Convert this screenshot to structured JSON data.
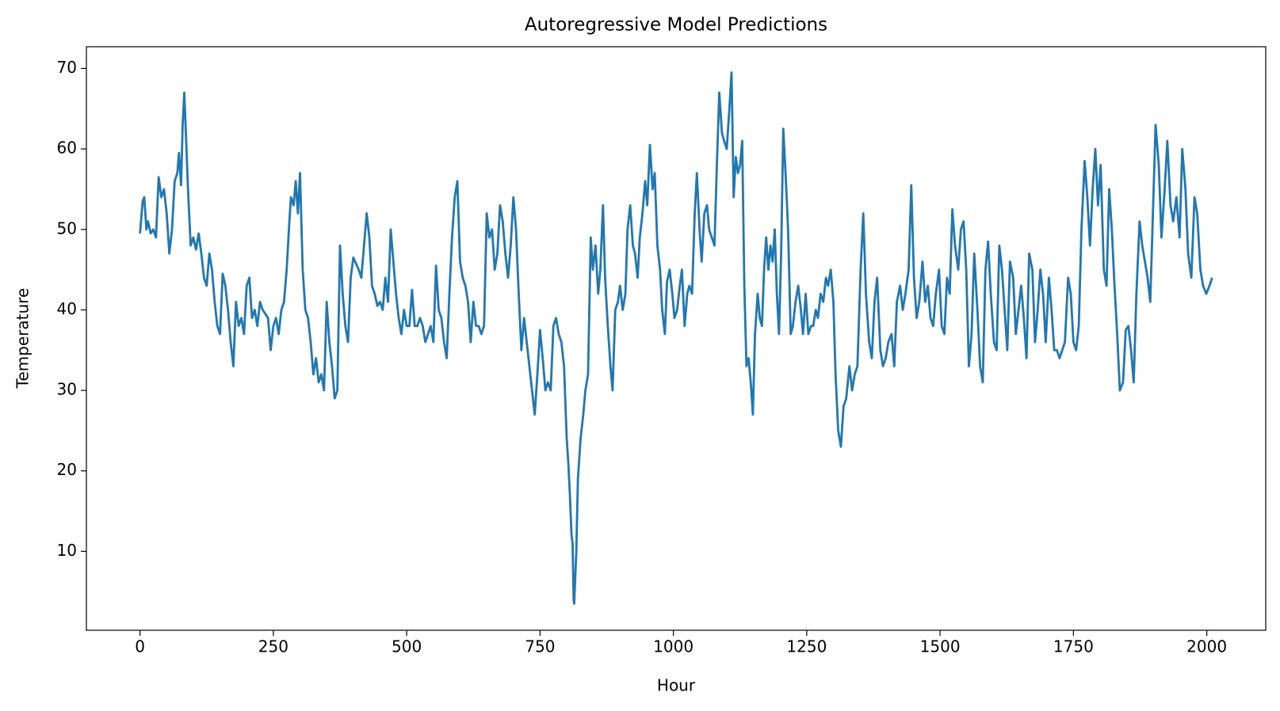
{
  "chart_data": {
    "type": "line",
    "title": "Autoregressive Model Predictions",
    "x_label": "Hour",
    "y_label": "Temperature",
    "color": "#1f77b4",
    "xlim": [
      -100.5,
      2110.5
    ],
    "ylim": [
      0.2,
      72.7
    ],
    "xticks": [
      0,
      250,
      500,
      750,
      1000,
      1250,
      1500,
      1750,
      2000
    ],
    "yticks": [
      10,
      20,
      30,
      40,
      50,
      60,
      70
    ],
    "x": [
      0,
      5,
      8,
      12,
      15,
      20,
      25,
      30,
      35,
      40,
      45,
      50,
      55,
      60,
      65,
      70,
      73,
      77,
      80,
      83,
      86,
      90,
      95,
      100,
      105,
      110,
      115,
      120,
      125,
      130,
      135,
      140,
      145,
      150,
      155,
      160,
      165,
      170,
      175,
      180,
      185,
      190,
      195,
      200,
      205,
      210,
      215,
      220,
      225,
      230,
      240,
      245,
      250,
      255,
      260,
      265,
      270,
      275,
      280,
      283,
      288,
      292,
      296,
      300,
      305,
      310,
      315,
      320,
      325,
      330,
      335,
      340,
      345,
      350,
      355,
      360,
      365,
      370,
      375,
      380,
      385,
      390,
      395,
      400,
      410,
      415,
      420,
      425,
      430,
      435,
      440,
      445,
      450,
      455,
      460,
      465,
      470,
      475,
      480,
      485,
      490,
      495,
      500,
      505,
      510,
      515,
      520,
      525,
      530,
      535,
      540,
      545,
      550,
      555,
      560,
      565,
      570,
      575,
      580,
      585,
      590,
      595,
      600,
      605,
      610,
      615,
      620,
      625,
      630,
      635,
      640,
      645,
      650,
      655,
      660,
      665,
      670,
      675,
      680,
      685,
      690,
      695,
      700,
      705,
      710,
      715,
      720,
      725,
      730,
      735,
      740,
      745,
      750,
      755,
      760,
      765,
      770,
      775,
      780,
      785,
      790,
      795,
      800,
      803,
      806,
      809,
      811,
      813,
      814,
      818,
      821,
      826,
      831,
      835,
      840,
      845,
      849,
      854,
      859,
      863,
      868,
      872,
      877,
      882,
      886,
      891,
      896,
      900,
      905,
      910,
      914,
      919,
      924,
      928,
      933,
      937,
      942,
      947,
      951,
      956,
      961,
      965,
      970,
      975,
      979,
      984,
      988,
      993,
      998,
      1002,
      1007,
      1012,
      1016,
      1021,
      1026,
      1030,
      1035,
      1040,
      1044,
      1049,
      1053,
      1058,
      1063,
      1067,
      1072,
      1077,
      1081,
      1086,
      1091,
      1095,
      1100,
      1105,
      1109,
      1113,
      1117,
      1121,
      1125,
      1129,
      1133,
      1137,
      1141,
      1145,
      1149,
      1153,
      1158,
      1162,
      1166,
      1170,
      1174,
      1178,
      1182,
      1186,
      1190,
      1194,
      1198,
      1202,
      1206,
      1211,
      1215,
      1220,
      1224,
      1229,
      1234,
      1239,
      1243,
      1248,
      1253,
      1258,
      1262,
      1267,
      1271,
      1276,
      1281,
      1286,
      1290,
      1295,
      1300,
      1304,
      1309,
      1314,
      1319,
      1324,
      1330,
      1335,
      1340,
      1345,
      1351,
      1356,
      1361,
      1367,
      1372,
      1377,
      1382,
      1388,
      1393,
      1398,
      1403,
      1409,
      1414,
      1419,
      1425,
      1430,
      1435,
      1441,
      1446,
      1451,
      1456,
      1461,
      1467,
      1472,
      1477,
      1482,
      1487,
      1492,
      1498,
      1503,
      1508,
      1513,
      1518,
      1523,
      1528,
      1534,
      1539,
      1544,
      1549,
      1554,
      1559,
      1564,
      1570,
      1575,
      1580,
      1585,
      1590,
      1595,
      1601,
      1606,
      1611,
      1616,
      1621,
      1626,
      1631,
      1637,
      1642,
      1647,
      1652,
      1657,
      1662,
      1667,
      1673,
      1678,
      1683,
      1688,
      1693,
      1698,
      1704,
      1709,
      1714,
      1719,
      1724,
      1729,
      1734,
      1740,
      1745,
      1750,
      1755,
      1760,
      1765,
      1771,
      1776,
      1781,
      1786,
      1791,
      1796,
      1801,
      1807,
      1812,
      1817,
      1822,
      1827,
      1832,
      1837,
      1843,
      1848,
      1853,
      1858,
      1863,
      1868,
      1874,
      1879,
      1884,
      1889,
      1894,
      1899,
      1904,
      1910,
      1915,
      1921,
      1926,
      1932,
      1937,
      1943,
      1949,
      1954,
      1960,
      1965,
      1971,
      1977,
      1982,
      1988,
      1993,
      1999,
      2005,
      2010
    ],
    "values": [
      49.5,
      53.5,
      54,
      50,
      51,
      49.5,
      50,
      49,
      56.5,
      54,
      55,
      52,
      47,
      50,
      56,
      57,
      59.5,
      55.5,
      63,
      67,
      62,
      55,
      48,
      49,
      47.5,
      49.5,
      47,
      44,
      43,
      47,
      45,
      41,
      38,
      37,
      44.5,
      43,
      40,
      36,
      33,
      41,
      38,
      39,
      37,
      43,
      44,
      39,
      40,
      38,
      41,
      40,
      39,
      35,
      38,
      39,
      37,
      40,
      41,
      45,
      51,
      54,
      53,
      56,
      52,
      57,
      45,
      40,
      39,
      36,
      32,
      34,
      31,
      32,
      30,
      41,
      36,
      33,
      29,
      30,
      48,
      42,
      38,
      36,
      44,
      46.5,
      45,
      44,
      48,
      52,
      49,
      43,
      42,
      40.5,
      41,
      40,
      44,
      41,
      50,
      46,
      42,
      39,
      37,
      40,
      38,
      38,
      42.5,
      38,
      38,
      39,
      38,
      36,
      37,
      38,
      36,
      45.5,
      40,
      39,
      36,
      34,
      42,
      49,
      54,
      56,
      46,
      44,
      43,
      41,
      36,
      41,
      38,
      38,
      37,
      38,
      52,
      49,
      50,
      45,
      47,
      53,
      51,
      47,
      44,
      48,
      54,
      50,
      42,
      35,
      39,
      36,
      33,
      30,
      27,
      32,
      37.5,
      34,
      30,
      31,
      30,
      38,
      39,
      37,
      36,
      33,
      24,
      21,
      17,
      12,
      11,
      4,
      3.5,
      10,
      19,
      24,
      27,
      30,
      32,
      49,
      45,
      48,
      42,
      45,
      53,
      44,
      38,
      33,
      30,
      40,
      41,
      43,
      40,
      42,
      50,
      53,
      48,
      47,
      44,
      49,
      52,
      56,
      53,
      60.5,
      55,
      57,
      48,
      45,
      40,
      37,
      43.5,
      45,
      42,
      39,
      40,
      43,
      45,
      38,
      42,
      43,
      42,
      52,
      57,
      50,
      46,
      52,
      53,
      50,
      49,
      48,
      57,
      67,
      62,
      61,
      60,
      65,
      69.5,
      54,
      59,
      57,
      58,
      61,
      43,
      33,
      34,
      31,
      27,
      37,
      42,
      39,
      38,
      45,
      49,
      45,
      48,
      46,
      50,
      42,
      37,
      47,
      62.5,
      56,
      50,
      37,
      38,
      41,
      43,
      40,
      37,
      42,
      37,
      38,
      38,
      40,
      39,
      42,
      41,
      44,
      43,
      45,
      41,
      32,
      25,
      23,
      28,
      29,
      33,
      30,
      32,
      33,
      45,
      52,
      42,
      36,
      34,
      41,
      44,
      35,
      33,
      34,
      36,
      37,
      33,
      41,
      43,
      40,
      42,
      45,
      55.5,
      44,
      39,
      41,
      46,
      41,
      43,
      39,
      38,
      42,
      45,
      38,
      37,
      44,
      42,
      52.5,
      48,
      45,
      50,
      51,
      45,
      33,
      37,
      47,
      40,
      33,
      31,
      45,
      48.5,
      42,
      36,
      35,
      48,
      45,
      40,
      35,
      46,
      44,
      37,
      40,
      43,
      39,
      34,
      47,
      45,
      36,
      40,
      45,
      42,
      36,
      44,
      40,
      35,
      35,
      34,
      35,
      36,
      44,
      42,
      36,
      35,
      38,
      50,
      58.5,
      54,
      48,
      55,
      60,
      53,
      58,
      45,
      43,
      55,
      50,
      43,
      37,
      30,
      31,
      37.5,
      38,
      35,
      31,
      42,
      51,
      48,
      46,
      44,
      41,
      52,
      63,
      58,
      49,
      55,
      61,
      53,
      51,
      54,
      49,
      60,
      55,
      47,
      44,
      54,
      52,
      45,
      43,
      42,
      43,
      44
    ]
  }
}
